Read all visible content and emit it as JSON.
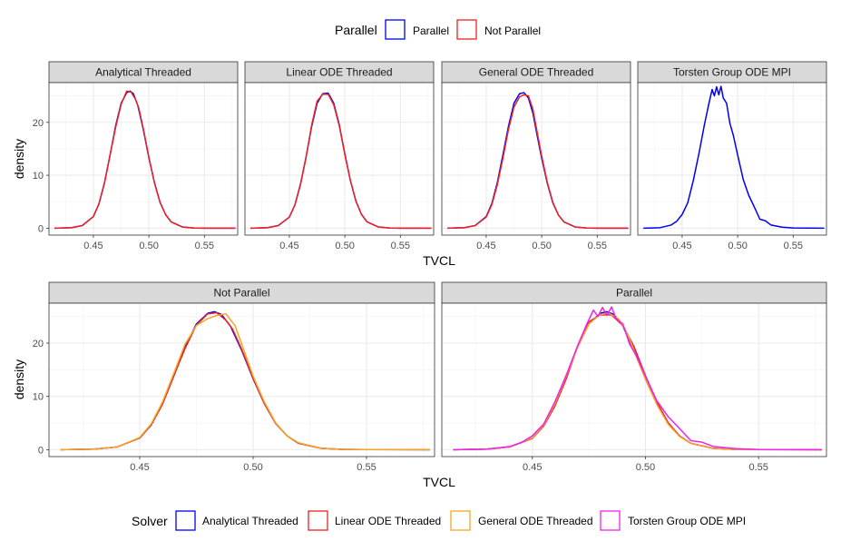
{
  "top_legend": {
    "title": "Parallel",
    "entries": [
      {
        "label": "Parallel",
        "color": "#0000ee"
      },
      {
        "label": "Not Parallel",
        "color": "#ee2222"
      }
    ]
  },
  "bottom_legend": {
    "title": "Solver",
    "entries": [
      {
        "label": "Analytical Threaded",
        "color": "#0000ee"
      },
      {
        "label": "Linear ODE Threaded",
        "color": "#ee2222"
      },
      {
        "label": "General ODE Threaded",
        "color": "#f5a623"
      },
      {
        "label": "Torsten Group ODE MPI",
        "color": "#ee22ee"
      }
    ]
  },
  "chart_data": [
    {
      "type": "line",
      "title": "",
      "xlabel": "TVCL",
      "ylabel": "density",
      "xlim": [
        0.41,
        0.58
      ],
      "ylim": [
        -1.3,
        27.5
      ],
      "x_ticks": [
        "0.45",
        "0.50",
        "0.55"
      ],
      "y_ticks": [
        "0",
        "10",
        "20"
      ],
      "grid": true,
      "legend": "top",
      "panels": [
        {
          "strip": "Analytical Threaded",
          "series": [
            {
              "name": "Parallel",
              "color": "#0000ee",
              "x": [
                0.415,
                0.43,
                0.44,
                0.45,
                0.455,
                0.46,
                0.465,
                0.47,
                0.475,
                0.48,
                0.483,
                0.486,
                0.49,
                0.495,
                0.5,
                0.505,
                0.51,
                0.515,
                0.52,
                0.53,
                0.54,
                0.55,
                0.578
              ],
              "y": [
                0,
                0.1,
                0.5,
                2.2,
                4.6,
                8.6,
                13.8,
                19.3,
                23.6,
                25.6,
                25.9,
                25.4,
                23.2,
                18.6,
                13.3,
                8.6,
                4.9,
                2.6,
                1.2,
                0.25,
                0.05,
                0.01,
                0
              ]
            },
            {
              "name": "Not Parallel",
              "color": "#ee2222",
              "x": [
                0.415,
                0.43,
                0.44,
                0.45,
                0.455,
                0.46,
                0.465,
                0.47,
                0.475,
                0.48,
                0.484,
                0.488,
                0.491,
                0.495,
                0.5,
                0.505,
                0.51,
                0.515,
                0.52,
                0.53,
                0.54,
                0.55,
                0.578
              ],
              "y": [
                0,
                0.1,
                0.5,
                2.2,
                4.6,
                8.5,
                13.8,
                19.0,
                23.4,
                25.9,
                25.7,
                24.3,
                22.6,
                18.8,
                13.4,
                8.6,
                4.9,
                2.6,
                1.2,
                0.25,
                0.05,
                0.01,
                0
              ]
            }
          ]
        },
        {
          "strip": "Linear ODE Threaded",
          "series": [
            {
              "name": "Parallel",
              "color": "#0000ee",
              "x": [
                0.415,
                0.43,
                0.44,
                0.45,
                0.455,
                0.46,
                0.465,
                0.47,
                0.475,
                0.48,
                0.485,
                0.49,
                0.495,
                0.5,
                0.505,
                0.51,
                0.515,
                0.52,
                0.53,
                0.54,
                0.55,
                0.578
              ],
              "y": [
                0,
                0.1,
                0.5,
                2.1,
                4.4,
                8.3,
                13.4,
                19.1,
                23.6,
                25.4,
                25.5,
                23.6,
                19.5,
                14.0,
                9.0,
                5.1,
                2.6,
                1.2,
                0.25,
                0.05,
                0.01,
                0
              ]
            },
            {
              "name": "Not Parallel",
              "color": "#ee2222",
              "x": [
                0.415,
                0.43,
                0.44,
                0.45,
                0.455,
                0.46,
                0.465,
                0.47,
                0.475,
                0.48,
                0.485,
                0.49,
                0.495,
                0.5,
                0.505,
                0.51,
                0.515,
                0.52,
                0.53,
                0.54,
                0.55,
                0.578
              ],
              "y": [
                0,
                0.1,
                0.5,
                2.1,
                4.4,
                8.2,
                13.3,
                19.4,
                24.0,
                25.3,
                25.3,
                23.3,
                19.3,
                13.9,
                9.0,
                5.1,
                2.6,
                1.2,
                0.25,
                0.05,
                0.01,
                0
              ]
            }
          ]
        },
        {
          "strip": "General ODE Threaded",
          "series": [
            {
              "name": "Parallel",
              "color": "#0000ee",
              "x": [
                0.415,
                0.43,
                0.44,
                0.45,
                0.455,
                0.46,
                0.465,
                0.47,
                0.475,
                0.48,
                0.484,
                0.488,
                0.492,
                0.496,
                0.5,
                0.505,
                0.51,
                0.515,
                0.52,
                0.53,
                0.54,
                0.55,
                0.578
              ],
              "y": [
                0,
                0.1,
                0.5,
                2.2,
                4.6,
                8.6,
                13.8,
                19.2,
                23.6,
                25.4,
                25.6,
                24.6,
                21.8,
                17.4,
                13.2,
                8.5,
                4.8,
                2.5,
                1.2,
                0.25,
                0.05,
                0.01,
                0
              ]
            },
            {
              "name": "Not Parallel",
              "color": "#ee2222",
              "x": [
                0.415,
                0.43,
                0.44,
                0.45,
                0.455,
                0.46,
                0.465,
                0.47,
                0.475,
                0.48,
                0.484,
                0.488,
                0.492,
                0.496,
                0.5,
                0.505,
                0.51,
                0.515,
                0.52,
                0.53,
                0.54,
                0.55,
                0.578
              ],
              "y": [
                0,
                0.1,
                0.5,
                2.1,
                4.4,
                8.2,
                13.2,
                18.6,
                22.9,
                24.8,
                25.2,
                25.0,
                22.5,
                18.0,
                13.6,
                8.7,
                4.9,
                2.5,
                1.2,
                0.25,
                0.05,
                0.01,
                0
              ]
            }
          ]
        },
        {
          "strip": "Torsten Group ODE MPI",
          "series": [
            {
              "name": "Parallel",
              "color": "#0000ee",
              "x": [
                0.415,
                0.43,
                0.44,
                0.445,
                0.45,
                0.455,
                0.46,
                0.465,
                0.47,
                0.474,
                0.477,
                0.479,
                0.481,
                0.483,
                0.485,
                0.487,
                0.49,
                0.493,
                0.496,
                0.5,
                0.505,
                0.51,
                0.515,
                0.52,
                0.525,
                0.53,
                0.54,
                0.55,
                0.578
              ],
              "y": [
                0,
                0.1,
                0.6,
                1.3,
                2.6,
                4.8,
                9.0,
                14.0,
                19.5,
                23.5,
                26.2,
                25.0,
                26.7,
                25.2,
                26.8,
                24.6,
                23.6,
                19.8,
                17.6,
                13.8,
                9.2,
                6.2,
                4.0,
                1.7,
                1.4,
                0.6,
                0.2,
                0.05,
                0
              ]
            }
          ]
        }
      ]
    },
    {
      "type": "line",
      "title": "",
      "xlabel": "TVCL",
      "ylabel": "density",
      "xlim": [
        0.41,
        0.58
      ],
      "ylim": [
        -1.3,
        27.5
      ],
      "x_ticks": [
        "0.45",
        "0.50",
        "0.55"
      ],
      "y_ticks": [
        "0",
        "10",
        "20"
      ],
      "grid": true,
      "legend": "bottom",
      "panels": [
        {
          "strip": "Not Parallel",
          "series": [
            {
              "name": "Analytical Threaded",
              "color": "#0000ee",
              "x": [
                0.415,
                0.43,
                0.44,
                0.45,
                0.455,
                0.46,
                0.465,
                0.47,
                0.475,
                0.48,
                0.483,
                0.486,
                0.49,
                0.495,
                0.5,
                0.505,
                0.51,
                0.515,
                0.52,
                0.53,
                0.54,
                0.55,
                0.578
              ],
              "y": [
                0,
                0.1,
                0.5,
                2.2,
                4.6,
                8.6,
                13.8,
                19.3,
                23.6,
                25.6,
                25.9,
                25.4,
                23.2,
                18.6,
                13.3,
                8.6,
                4.9,
                2.6,
                1.2,
                0.25,
                0.05,
                0.01,
                0
              ]
            },
            {
              "name": "Linear ODE Threaded",
              "color": "#ee2222",
              "x": [
                0.415,
                0.43,
                0.44,
                0.45,
                0.455,
                0.46,
                0.465,
                0.47,
                0.475,
                0.48,
                0.484,
                0.488,
                0.491,
                0.495,
                0.5,
                0.505,
                0.51,
                0.515,
                0.52,
                0.53,
                0.54,
                0.55,
                0.578
              ],
              "y": [
                0,
                0.1,
                0.5,
                2.2,
                4.6,
                8.5,
                13.8,
                19.0,
                23.4,
                25.5,
                25.7,
                24.3,
                22.6,
                18.8,
                13.4,
                8.6,
                4.9,
                2.6,
                1.2,
                0.25,
                0.05,
                0.01,
                0
              ]
            },
            {
              "name": "General ODE Threaded",
              "color": "#f5a623",
              "x": [
                0.415,
                0.43,
                0.44,
                0.45,
                0.455,
                0.46,
                0.465,
                0.47,
                0.475,
                0.48,
                0.484,
                0.488,
                0.492,
                0.496,
                0.5,
                0.505,
                0.51,
                0.515,
                0.52,
                0.53,
                0.54,
                0.55,
                0.578
              ],
              "y": [
                0,
                0.1,
                0.5,
                2.3,
                4.8,
                8.9,
                14.3,
                19.8,
                23.3,
                24.6,
                25.2,
                25.5,
                23.3,
                18.6,
                13.8,
                8.9,
                5.0,
                2.6,
                1.3,
                0.25,
                0.05,
                0.01,
                0
              ]
            }
          ]
        },
        {
          "strip": "Parallel",
          "series": [
            {
              "name": "Analytical Threaded",
              "color": "#0000ee",
              "x": [
                0.415,
                0.43,
                0.44,
                0.45,
                0.455,
                0.46,
                0.465,
                0.47,
                0.475,
                0.48,
                0.483,
                0.486,
                0.49,
                0.495,
                0.5,
                0.505,
                0.51,
                0.515,
                0.52,
                0.53,
                0.54,
                0.55,
                0.578
              ],
              "y": [
                0,
                0.1,
                0.5,
                2.2,
                4.6,
                8.6,
                13.8,
                19.3,
                23.6,
                25.6,
                25.9,
                25.4,
                23.2,
                18.6,
                13.3,
                8.6,
                4.9,
                2.6,
                1.2,
                0.25,
                0.05,
                0.01,
                0
              ]
            },
            {
              "name": "Linear ODE Threaded",
              "color": "#ee2222",
              "x": [
                0.415,
                0.43,
                0.44,
                0.45,
                0.455,
                0.46,
                0.465,
                0.47,
                0.475,
                0.48,
                0.485,
                0.49,
                0.495,
                0.5,
                0.505,
                0.51,
                0.515,
                0.52,
                0.53,
                0.54,
                0.55,
                0.578
              ],
              "y": [
                0,
                0.1,
                0.5,
                2.1,
                4.4,
                8.2,
                13.3,
                19.4,
                24.0,
                25.3,
                25.3,
                23.3,
                19.3,
                13.9,
                9.0,
                5.1,
                2.6,
                1.2,
                0.25,
                0.05,
                0.01,
                0
              ]
            },
            {
              "name": "General ODE Threaded",
              "color": "#f5a623",
              "x": [
                0.415,
                0.43,
                0.44,
                0.45,
                0.455,
                0.46,
                0.465,
                0.47,
                0.475,
                0.48,
                0.484,
                0.488,
                0.492,
                0.496,
                0.5,
                0.505,
                0.51,
                0.515,
                0.52,
                0.53,
                0.54,
                0.55,
                0.578
              ],
              "y": [
                0,
                0.1,
                0.5,
                2.2,
                4.6,
                8.6,
                13.8,
                19.2,
                23.6,
                25.4,
                25.6,
                24.6,
                21.8,
                17.4,
                13.2,
                8.5,
                4.8,
                2.5,
                1.2,
                0.25,
                0.05,
                0.01,
                0
              ]
            },
            {
              "name": "Torsten Group ODE MPI",
              "color": "#ee22ee",
              "x": [
                0.415,
                0.43,
                0.44,
                0.445,
                0.45,
                0.455,
                0.46,
                0.465,
                0.47,
                0.474,
                0.477,
                0.479,
                0.481,
                0.483,
                0.485,
                0.487,
                0.49,
                0.493,
                0.496,
                0.5,
                0.505,
                0.51,
                0.515,
                0.52,
                0.525,
                0.53,
                0.54,
                0.55,
                0.578
              ],
              "y": [
                0,
                0.1,
                0.6,
                1.3,
                2.6,
                4.8,
                9.0,
                14.0,
                19.5,
                23.5,
                26.2,
                25.0,
                26.7,
                25.2,
                26.8,
                24.6,
                23.6,
                19.8,
                17.6,
                13.8,
                9.2,
                6.2,
                4.0,
                1.7,
                1.4,
                0.6,
                0.2,
                0.05,
                0
              ]
            }
          ]
        }
      ]
    }
  ]
}
